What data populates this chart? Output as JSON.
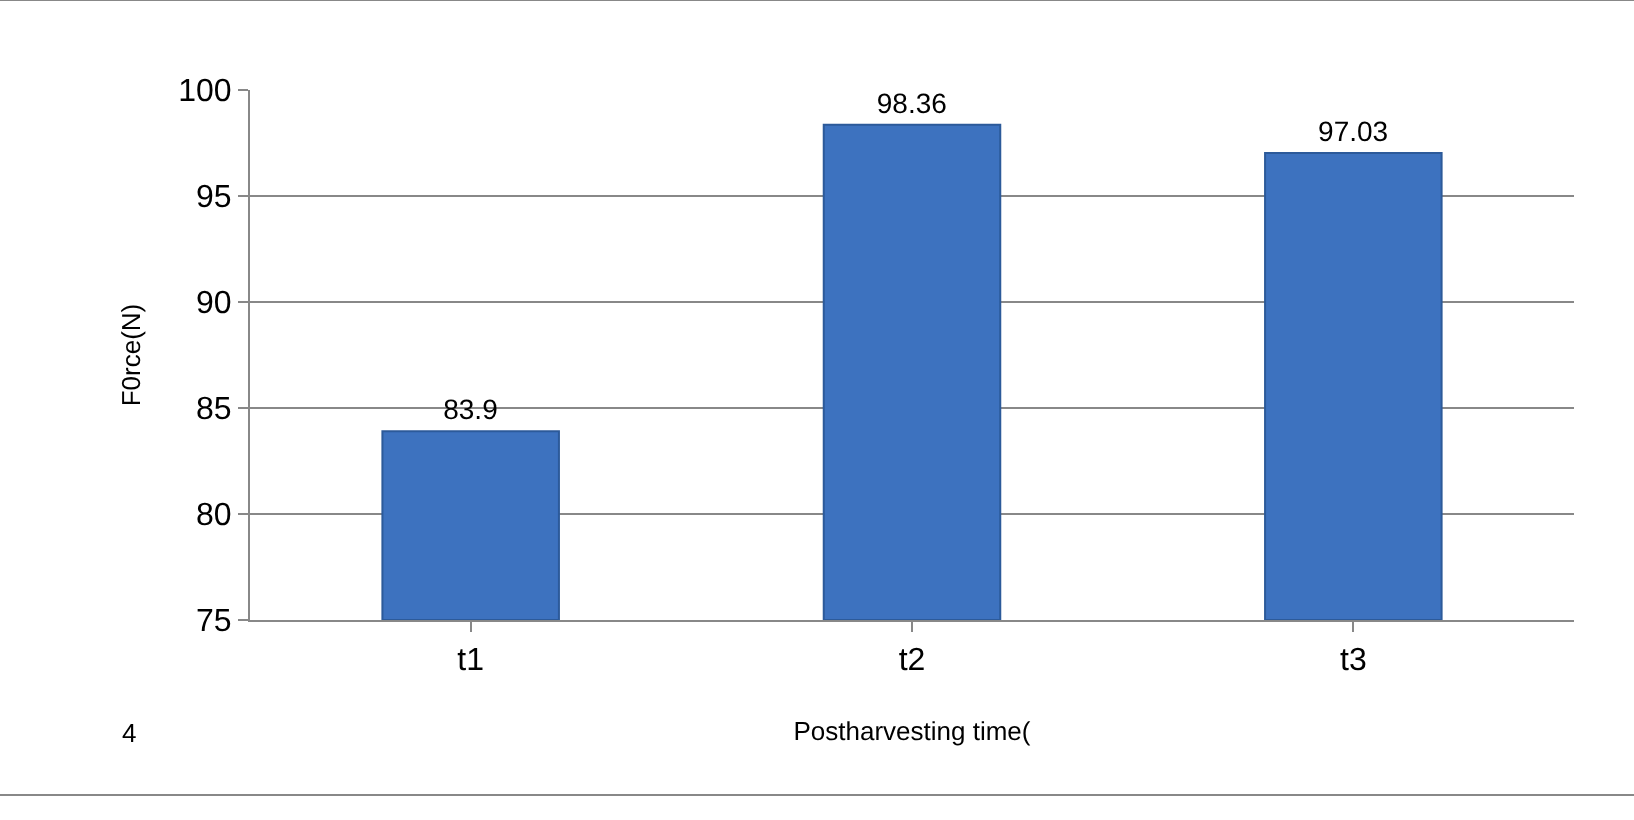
{
  "chart_data": {
    "type": "bar",
    "categories": [
      "t1",
      "t2",
      "t3"
    ],
    "values": [
      83.9,
      98.36,
      97.03
    ],
    "color": "#3d72bf",
    "xlabel": "Postharvesting time(",
    "ylabel": "F0rce(N)",
    "ylim": [
      75,
      100
    ],
    "yticks": [
      75,
      80,
      85,
      90,
      95,
      100
    ],
    "grid": "y",
    "data_labels": true,
    "annotations": [
      "4"
    ]
  }
}
